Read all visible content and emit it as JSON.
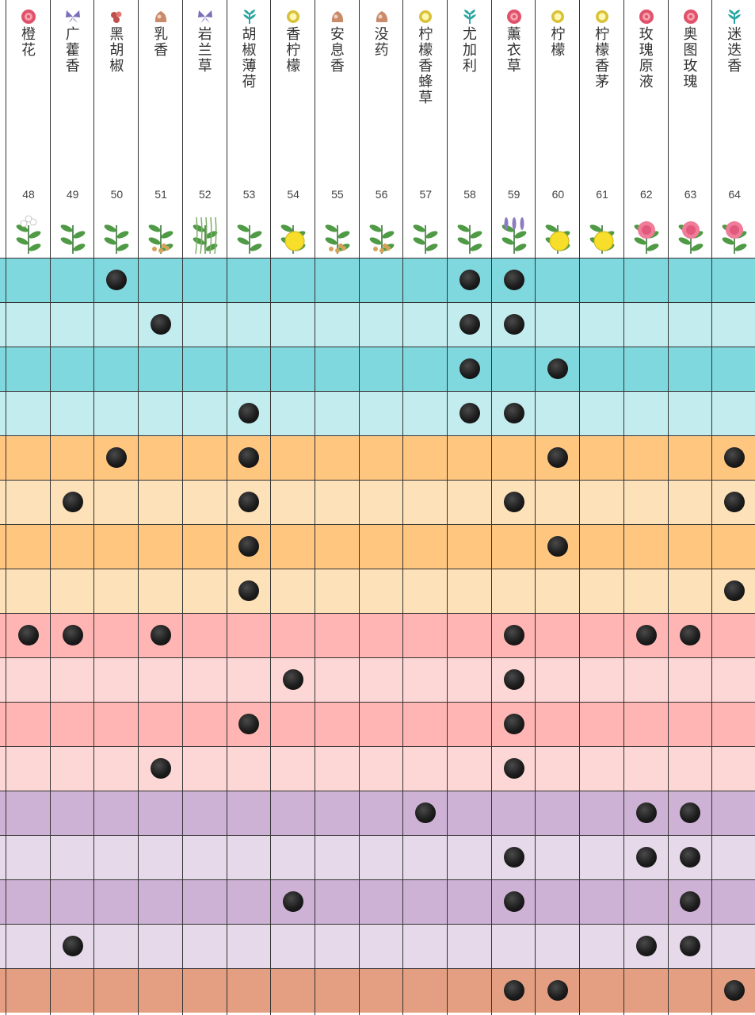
{
  "columns": [
    {
      "name": "橙花",
      "number": "48",
      "marker": "rose-icon",
      "plant": "neroli-illustration"
    },
    {
      "name": "广藿香",
      "number": "49",
      "marker": "butterfly-icon",
      "plant": "patchouli-illustration"
    },
    {
      "name": "黑胡椒",
      "number": "50",
      "marker": "spice-icon",
      "plant": "black-pepper-illustration"
    },
    {
      "name": "乳香",
      "number": "51",
      "marker": "resin-icon",
      "plant": "frankincense-illustration"
    },
    {
      "name": "岩兰草",
      "number": "52",
      "marker": "butterfly-icon",
      "plant": "vetiver-illustration"
    },
    {
      "name": "胡椒薄荷",
      "number": "53",
      "marker": "leaf-icon",
      "plant": "peppermint-illustration"
    },
    {
      "name": "香柠檬",
      "number": "54",
      "marker": "citrus-icon",
      "plant": "bergamot-illustration"
    },
    {
      "name": "安息香",
      "number": "55",
      "marker": "resin-icon",
      "plant": "benzoin-illustration"
    },
    {
      "name": "没药",
      "number": "56",
      "marker": "resin-icon",
      "plant": "myrrh-illustration"
    },
    {
      "name": "柠檬香蜂草",
      "number": "57",
      "marker": "citrus-icon",
      "plant": "melissa-illustration"
    },
    {
      "name": "尤加利",
      "number": "58",
      "marker": "leaf-icon",
      "plant": "eucalyptus-illustration"
    },
    {
      "name": "薰衣草",
      "number": "59",
      "marker": "rose-icon",
      "plant": "lavender-illustration"
    },
    {
      "name": "柠檬",
      "number": "60",
      "marker": "citrus-icon",
      "plant": "lemon-illustration"
    },
    {
      "name": "柠檬香茅",
      "number": "61",
      "marker": "citrus-icon",
      "plant": "lemongrass-illustration"
    },
    {
      "name": "玫瑰原液",
      "number": "62",
      "marker": "rose-icon",
      "plant": "rose-absolute-illustration"
    },
    {
      "name": "奥图玫瑰",
      "number": "63",
      "marker": "rose-icon",
      "plant": "rose-otto-illustration"
    },
    {
      "name": "迷迭香",
      "number": "64",
      "marker": "leaf-icon",
      "plant": "rosemary-illustration"
    }
  ],
  "row_colors": [
    "#80d8df",
    "#c3ecee",
    "#80d8df",
    "#c3ecee",
    "#ffc680",
    "#fde1b8",
    "#ffc680",
    "#fde1b8",
    "#ffb5b3",
    "#fdd7d5",
    "#ffb5b3",
    "#fdd7d5",
    "#cdb2d5",
    "#e6d9e9",
    "#cdb2d5",
    "#e6d9e9",
    "#e49f82"
  ],
  "marker_colors": {
    "rose": "#e0516a",
    "butterfly": "#7b6fb8",
    "spice": "#c0504d",
    "resin": "#c98b6a",
    "leaf": "#2aa6a0",
    "citrus": "#d8c23a"
  },
  "matrix": [
    [
      0,
      0,
      1,
      0,
      0,
      0,
      0,
      0,
      0,
      0,
      1,
      1,
      0,
      0,
      0,
      0,
      0
    ],
    [
      0,
      0,
      0,
      1,
      0,
      0,
      0,
      0,
      0,
      0,
      1,
      1,
      0,
      0,
      0,
      0,
      0
    ],
    [
      0,
      0,
      0,
      0,
      0,
      0,
      0,
      0,
      0,
      0,
      1,
      0,
      1,
      0,
      0,
      0,
      0
    ],
    [
      0,
      0,
      0,
      0,
      0,
      1,
      0,
      0,
      0,
      0,
      1,
      1,
      0,
      0,
      0,
      0,
      0
    ],
    [
      0,
      0,
      1,
      0,
      0,
      1,
      0,
      0,
      0,
      0,
      0,
      0,
      1,
      0,
      0,
      0,
      1
    ],
    [
      0,
      1,
      0,
      0,
      0,
      1,
      0,
      0,
      0,
      0,
      0,
      1,
      0,
      0,
      0,
      0,
      1
    ],
    [
      0,
      0,
      0,
      0,
      0,
      1,
      0,
      0,
      0,
      0,
      0,
      0,
      1,
      0,
      0,
      0,
      0
    ],
    [
      0,
      0,
      0,
      0,
      0,
      1,
      0,
      0,
      0,
      0,
      0,
      0,
      0,
      0,
      0,
      0,
      1
    ],
    [
      1,
      1,
      0,
      1,
      0,
      0,
      0,
      0,
      0,
      0,
      0,
      1,
      0,
      0,
      1,
      1,
      0
    ],
    [
      0,
      0,
      0,
      0,
      0,
      0,
      1,
      0,
      0,
      0,
      0,
      1,
      0,
      0,
      0,
      0,
      0
    ],
    [
      0,
      0,
      0,
      0,
      0,
      1,
      0,
      0,
      0,
      0,
      0,
      1,
      0,
      0,
      0,
      0,
      0
    ],
    [
      0,
      0,
      0,
      1,
      0,
      0,
      0,
      0,
      0,
      0,
      0,
      1,
      0,
      0,
      0,
      0,
      0
    ],
    [
      0,
      0,
      0,
      0,
      0,
      0,
      0,
      0,
      0,
      1,
      0,
      0,
      0,
      0,
      1,
      1,
      0
    ],
    [
      0,
      0,
      0,
      0,
      0,
      0,
      0,
      0,
      0,
      0,
      0,
      1,
      0,
      0,
      1,
      1,
      0
    ],
    [
      0,
      0,
      0,
      0,
      0,
      0,
      1,
      0,
      0,
      0,
      0,
      1,
      0,
      0,
      0,
      1,
      0
    ],
    [
      0,
      1,
      0,
      0,
      0,
      0,
      0,
      0,
      0,
      0,
      0,
      0,
      0,
      0,
      1,
      1,
      0
    ],
    [
      0,
      0,
      0,
      0,
      0,
      0,
      0,
      0,
      0,
      0,
      0,
      1,
      1,
      0,
      0,
      0,
      1
    ]
  ]
}
